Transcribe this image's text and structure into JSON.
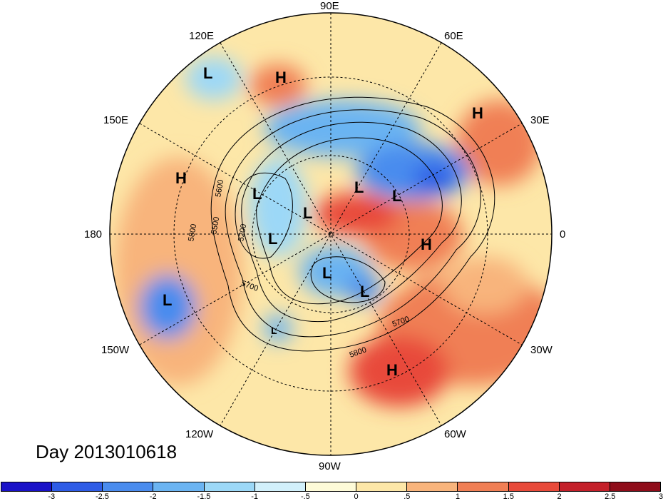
{
  "map": {
    "projection": "north-polar-stereographic",
    "longitude_labels": [
      "90E",
      "120E",
      "60E",
      "150E",
      "30E",
      "180",
      "0",
      "150W",
      "30W",
      "120W",
      "60W",
      "90W"
    ],
    "contour_labels": [
      "5600",
      "5800",
      "5500",
      "5200",
      "5700",
      "5700",
      "5800"
    ],
    "pressure_systems": [
      "L",
      "H",
      "H",
      "H",
      "L",
      "L",
      "L",
      "L",
      "L",
      "L",
      "H",
      "L",
      "L",
      "L",
      "H"
    ]
  },
  "date_label": "Day 2013010618",
  "colorbar": {
    "colors": [
      "#1a12c8",
      "#2e5ce6",
      "#4a8cee",
      "#6bb4f2",
      "#9cd8f7",
      "#d2f0fb",
      "#fefbd8",
      "#fde7a8",
      "#f8b47c",
      "#f07f55",
      "#e84a3a",
      "#c4202a",
      "#8f0d1a"
    ],
    "ticks": [
      "-3",
      "-2.5",
      "-2",
      "-1.5",
      "-1",
      "-.5",
      "0",
      ".5",
      "1",
      "1.5",
      "2",
      "2.5",
      "3"
    ]
  }
}
